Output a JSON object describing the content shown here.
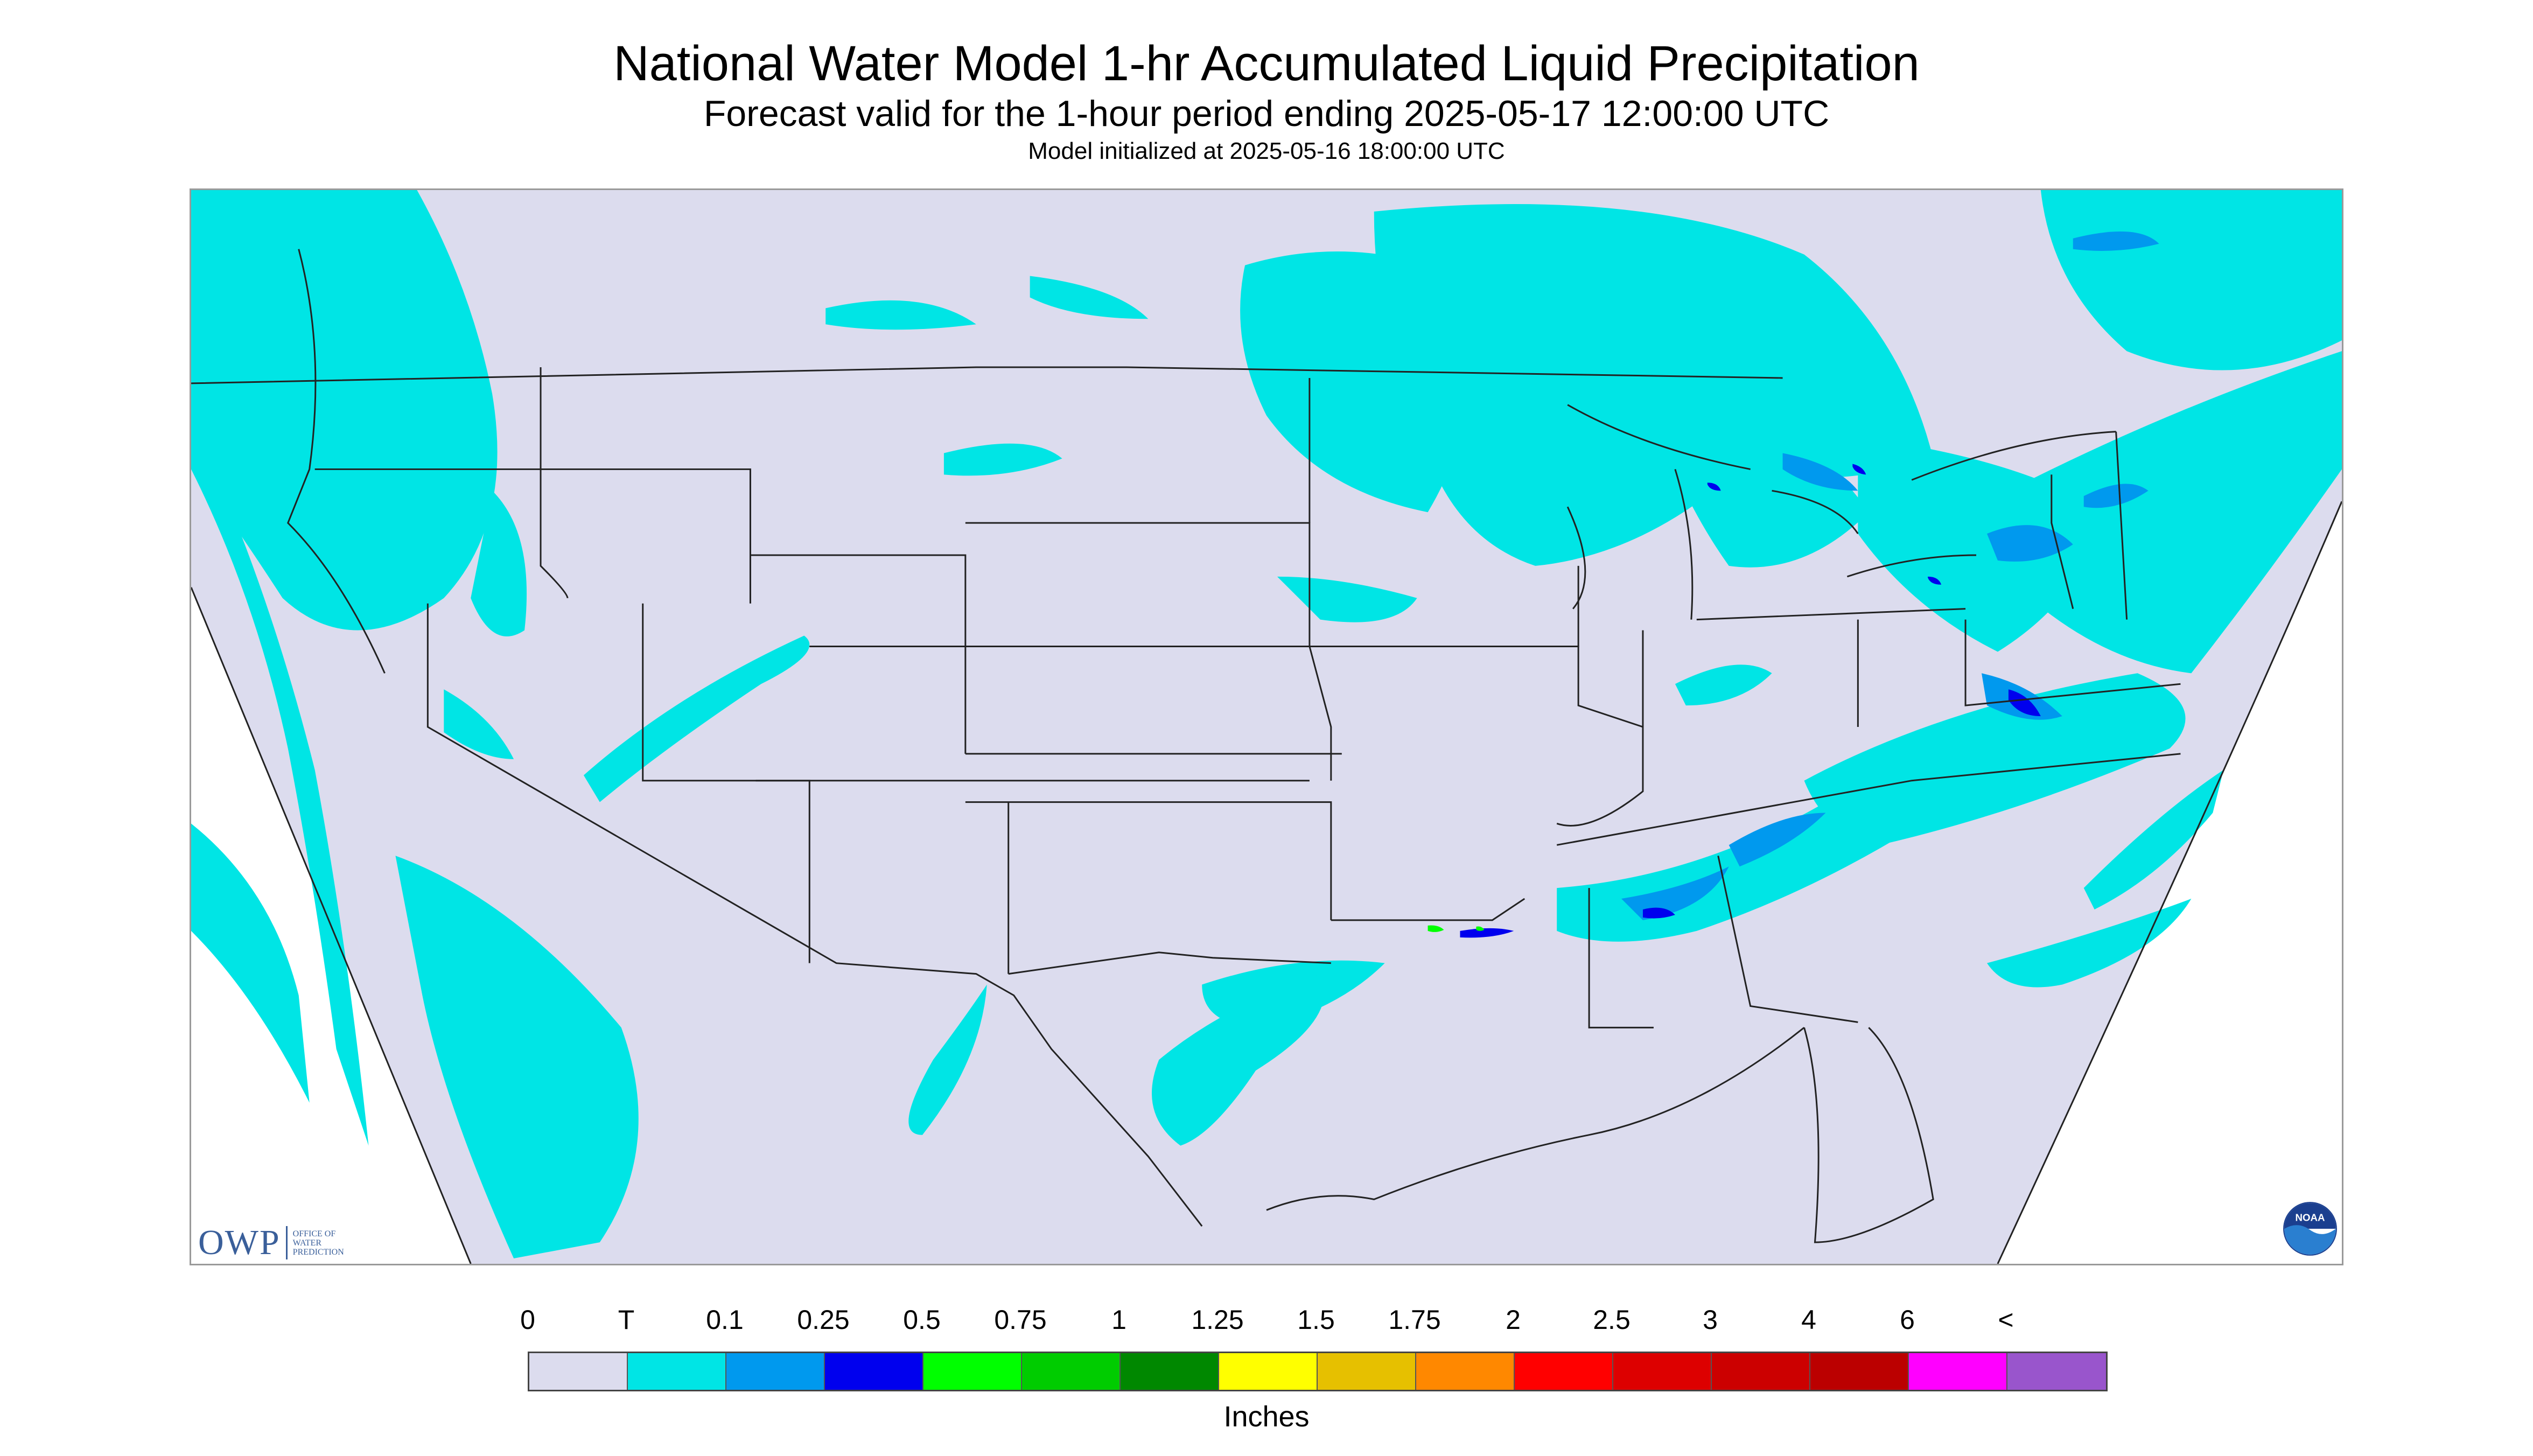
{
  "header": {
    "title": "National Water Model 1-hr Accumulated Liquid Precipitation",
    "subtitle": "Forecast valid for the 1-hour period ending 2025-05-17 12:00:00 UTC",
    "model_init": "Model initialized at 2025-05-16 18:00:00 UTC"
  },
  "logos": {
    "owp": "OWP",
    "owp_sub": [
      "OFFICE OF",
      "WATER",
      "PREDICTION"
    ],
    "noaa": "NOAA"
  },
  "colors": {
    "map_background": "#dcdcee",
    "frame_fill": "#ffffff",
    "precip_trace": "#00e5e5",
    "precip_0_1": "#0099ee",
    "precip_0_25": "#0000ee",
    "precip_0_5": "#00ff00",
    "precip_0_75": "#00cc00",
    "boundary_line": "#222222"
  },
  "legend": {
    "labels": [
      "0",
      "T",
      "0.1",
      "0.25",
      "0.5",
      "0.75",
      "1",
      "1.25",
      "1.5",
      "1.75",
      "2",
      "2.5",
      "3",
      "4",
      "6",
      "<"
    ],
    "colors": [
      "#dcdcee",
      "#00e5e5",
      "#0099ee",
      "#0000ee",
      "#00ff00",
      "#00cc00",
      "#008800",
      "#ffff00",
      "#e6c000",
      "#ff8800",
      "#ff0000",
      "#dd0000",
      "#cc0000",
      "#bb0000",
      "#ff00ff",
      "#9955cc"
    ],
    "units": "Inches"
  }
}
